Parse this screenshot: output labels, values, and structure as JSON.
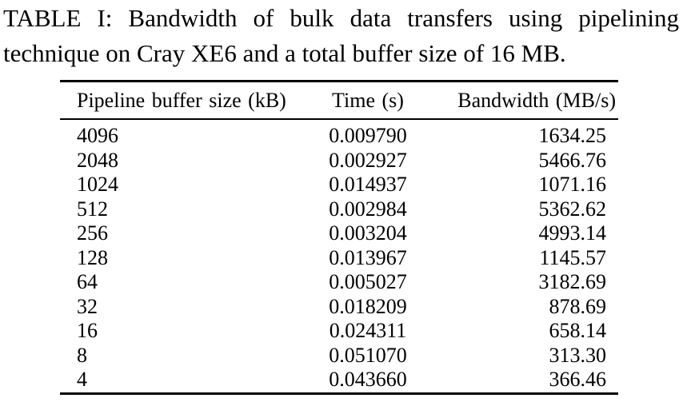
{
  "caption": {
    "line1": "TABLE I: Bandwidth of bulk data transfers using pipelining",
    "line2": "technique on Cray XE6 and a total buffer size of 16 MB.",
    "full_text": "TABLE I: Bandwidth of bulk data transfers using pipelining technique on Cray XE6 and a total buffer size of 16 MB."
  },
  "table": {
    "columns": [
      "Pipeline buffer size (kB)",
      "Time (s)",
      "Bandwidth (MB/s)"
    ],
    "rows": [
      {
        "size": "4096",
        "time": "0.009790",
        "bandwidth": "1634.25"
      },
      {
        "size": "2048",
        "time": "0.002927",
        "bandwidth": "5466.76"
      },
      {
        "size": "1024",
        "time": "0.014937",
        "bandwidth": "1071.16"
      },
      {
        "size": "512",
        "time": "0.002984",
        "bandwidth": "5362.62"
      },
      {
        "size": "256",
        "time": "0.003204",
        "bandwidth": "4993.14"
      },
      {
        "size": "128",
        "time": "0.013967",
        "bandwidth": "1145.57"
      },
      {
        "size": "64",
        "time": "0.005027",
        "bandwidth": "3182.69"
      },
      {
        "size": "32",
        "time": "0.018209",
        "bandwidth": "878.69"
      },
      {
        "size": "16",
        "time": "0.024311",
        "bandwidth": "658.14"
      },
      {
        "size": "8",
        "time": "0.051070",
        "bandwidth": "313.30"
      },
      {
        "size": "4",
        "time": "0.043660",
        "bandwidth": "366.46"
      }
    ],
    "colors": {
      "text": "#000000",
      "background": "#ffffff",
      "rule": "#000000"
    }
  }
}
